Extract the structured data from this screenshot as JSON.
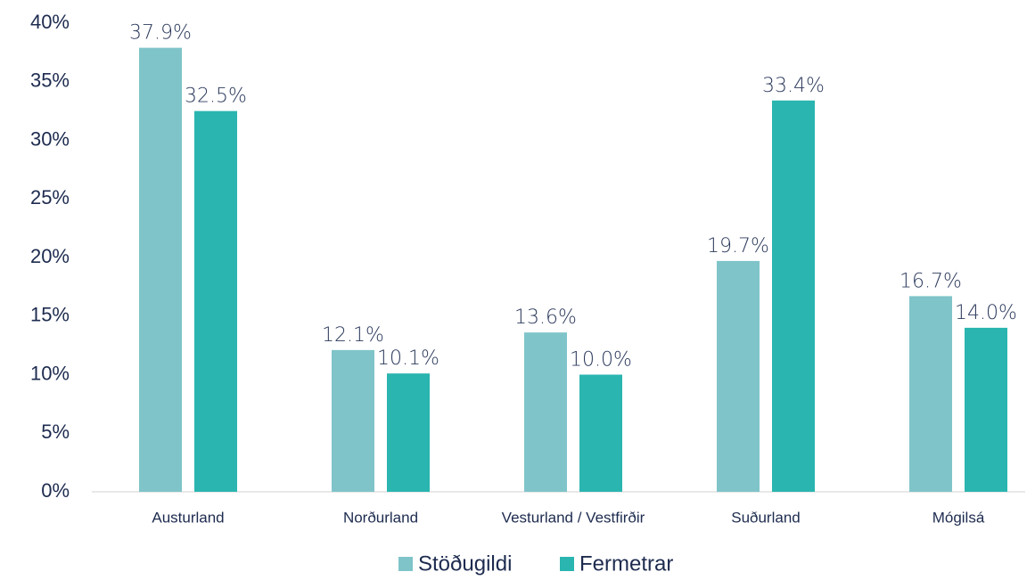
{
  "chart_data": {
    "type": "bar",
    "categories": [
      "Austurland",
      "Norðurland",
      "Vesturland / Vestfirðir",
      "Suðurland",
      "Mógilsá"
    ],
    "series": [
      {
        "name": "Stöðugildi",
        "color": "#7fc4c9",
        "values": [
          37.9,
          12.1,
          13.6,
          19.7,
          16.7
        ],
        "value_labels": [
          "37.9%",
          "12.1%",
          "13.6%",
          "19.7%",
          "16.7%"
        ]
      },
      {
        "name": "Fermetrar",
        "color": "#2ab5b0",
        "values": [
          32.5,
          10.1,
          10.0,
          33.4,
          14.0
        ],
        "value_labels": [
          "32.5%",
          "10.1%",
          "10.0%",
          "33.4%",
          "14.0%"
        ]
      }
    ],
    "ylim": [
      0,
      40
    ],
    "yticks": [
      {
        "value": 0,
        "label": "0%"
      },
      {
        "value": 5,
        "label": "5%"
      },
      {
        "value": 10,
        "label": "10%"
      },
      {
        "value": 15,
        "label": "15%"
      },
      {
        "value": 20,
        "label": "20%"
      },
      {
        "value": 25,
        "label": "25%"
      },
      {
        "value": 30,
        "label": "30%"
      },
      {
        "value": 35,
        "label": "35%"
      },
      {
        "value": 40,
        "label": "40%"
      }
    ],
    "grid": false,
    "legend": "bottom"
  }
}
